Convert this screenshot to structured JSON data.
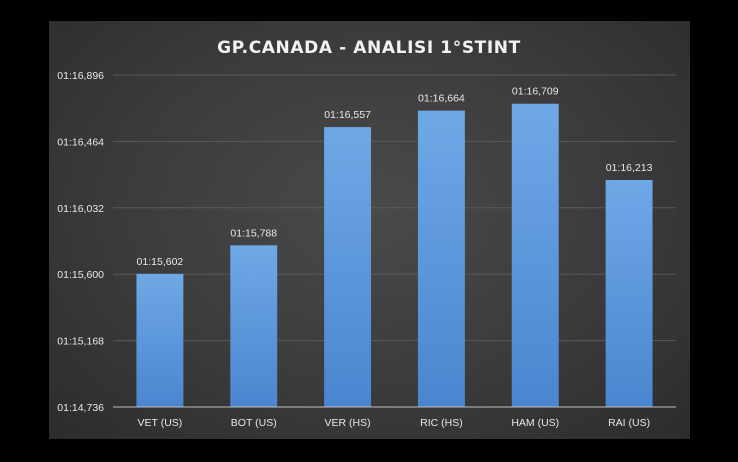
{
  "chart_data": {
    "type": "bar",
    "title": "GP.CANADA  - ANALISI  1°STINT",
    "xlabel": "",
    "ylabel": "",
    "categories": [
      "VET (US)",
      "BOT (US)",
      "VER (HS)",
      "RIC (HS)",
      "HAM (US)",
      "RAI (US)"
    ],
    "values": [
      75.602,
      75.788,
      76.557,
      76.664,
      76.709,
      76.213
    ],
    "data_labels": [
      "01:15,602",
      "01:15,788",
      "01:16,557",
      "01:16,664",
      "01:16,709",
      "01:16,213"
    ],
    "ylim": [
      74.736,
      76.896
    ],
    "y_ticks": [
      74.736,
      75.168,
      75.6,
      76.032,
      76.464,
      76.896
    ],
    "y_tick_labels": [
      "01:14,736",
      "01:15,168",
      "01:15,600",
      "01:16,032",
      "01:16,464",
      "01:16,896"
    ],
    "grid": true,
    "legend": "none",
    "colors": {
      "bar_top": "#6fa8e6",
      "bar_bottom": "#4a86d0",
      "background": "#3b3b3b",
      "outer_background": "#000000",
      "text": "#e8e8e8"
    }
  }
}
